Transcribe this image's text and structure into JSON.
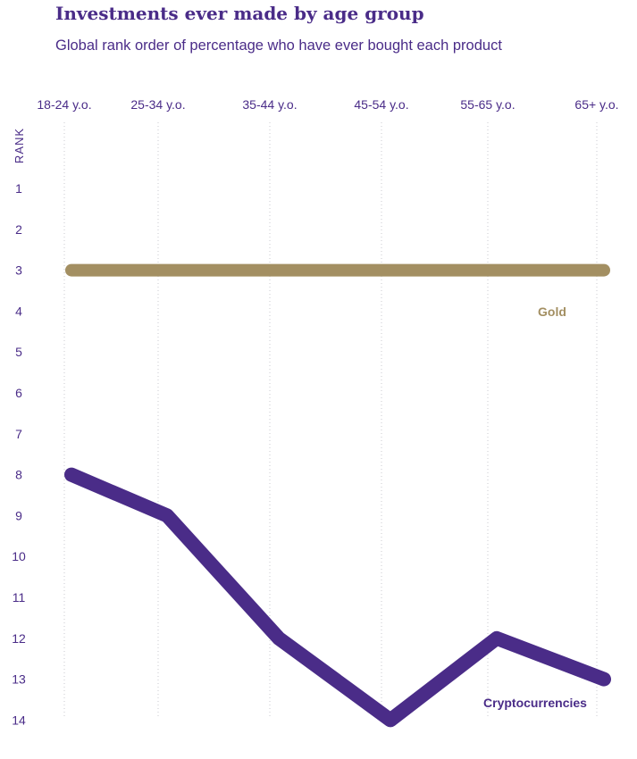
{
  "chart_data": {
    "type": "line",
    "title": "Investments ever made by age group",
    "subtitle": "Global rank order of percentage who have ever bought each product",
    "ylabel": "RANK",
    "xlabel": "",
    "x_position": "top",
    "y_inverted": true,
    "grid": "vertical dotted",
    "categories": [
      "18-24 y.o.",
      "25-34 y.o.",
      "35-44 y.o.",
      "45-54 y.o.",
      "55-65 y.o.",
      "65+ y.o."
    ],
    "y_ticks": [
      1,
      2,
      3,
      4,
      5,
      6,
      7,
      8,
      9,
      10,
      11,
      12,
      13,
      14
    ],
    "ylim": [
      1,
      14
    ],
    "series": [
      {
        "name": "Gold",
        "values": [
          3,
          3,
          3,
          3,
          3,
          3
        ],
        "color": "#a38f62"
      },
      {
        "name": "Cryptocurrencies",
        "values": [
          8,
          9,
          12,
          14,
          12,
          13
        ],
        "color": "#4a2c88"
      }
    ]
  }
}
